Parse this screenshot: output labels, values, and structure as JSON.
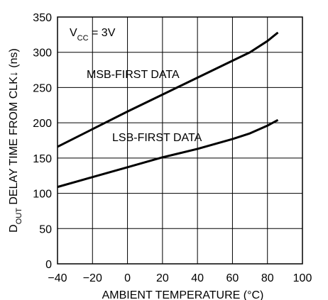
{
  "chart_data": {
    "type": "line",
    "title": "",
    "xlabel": "AMBIENT TEMPERATURE (°C)",
    "ylabel_parts": {
      "main": "D",
      "sub": "OUT",
      "rest": " DELAY TIME FROM CLK↓ (ns)"
    },
    "xlim": [
      -40,
      100
    ],
    "ylim": [
      0,
      350
    ],
    "x_ticks": [
      -40,
      -20,
      0,
      20,
      40,
      60,
      80,
      100
    ],
    "y_ticks": [
      0,
      50,
      100,
      150,
      200,
      250,
      300,
      350
    ],
    "x_tick_labels": [
      "−40",
      "−20",
      "0",
      "20",
      "40",
      "60",
      "80",
      "100"
    ],
    "y_tick_labels": [
      "0",
      "50",
      "100",
      "150",
      "200",
      "250",
      "300",
      "350"
    ],
    "grid": true,
    "legend": "none",
    "condition": {
      "main": "V",
      "sub": "CC",
      "rest": " = 3V"
    },
    "series": [
      {
        "name": "MSB-FIRST DATA",
        "x": [
          -40,
          -20,
          0,
          20,
          40,
          60,
          70,
          80,
          86
        ],
        "y": [
          166,
          191,
          216,
          240,
          264,
          288,
          300,
          316,
          328
        ]
      },
      {
        "name": "LSB-FIRST DATA",
        "x": [
          -40,
          -20,
          0,
          20,
          40,
          60,
          70,
          80,
          86
        ],
        "y": [
          109,
          123,
          137,
          151,
          163,
          177,
          185,
          196,
          204
        ]
      }
    ]
  }
}
